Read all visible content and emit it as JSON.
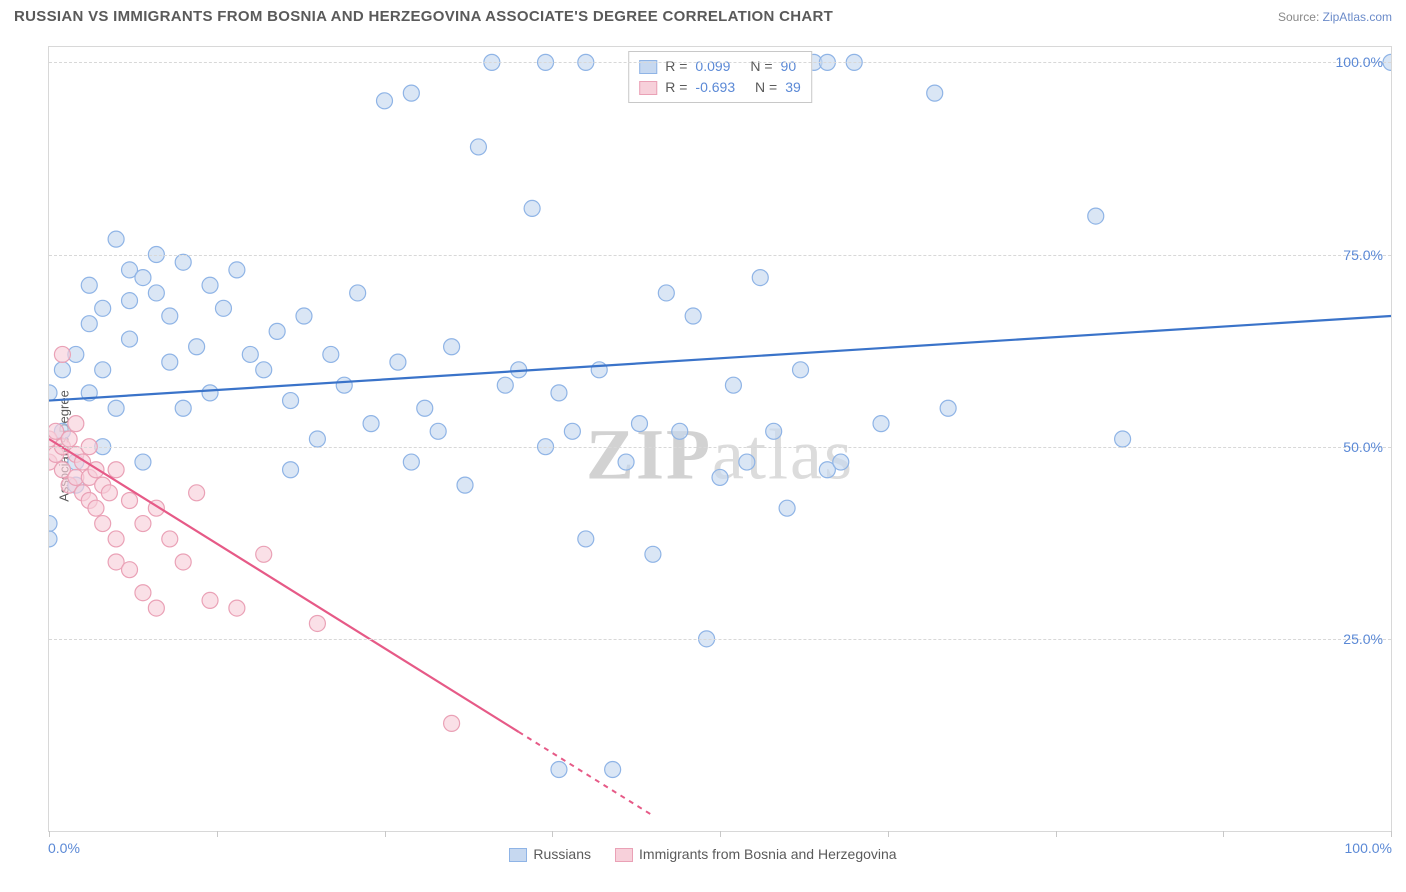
{
  "title": "RUSSIAN VS IMMIGRANTS FROM BOSNIA AND HERZEGOVINA ASSOCIATE'S DEGREE CORRELATION CHART",
  "source_prefix": "Source: ",
  "source_link": "ZipAtlas.com",
  "ylabel": "Associate's Degree",
  "watermark_a": "ZIP",
  "watermark_b": "atlas",
  "chart": {
    "type": "scatter",
    "xlim": [
      0,
      100
    ],
    "ylim": [
      0,
      102
    ],
    "ytick_values": [
      25,
      50,
      75,
      100
    ],
    "ytick_labels": [
      "25.0%",
      "50.0%",
      "75.0%",
      "100.0%"
    ],
    "xtick_values": [
      0,
      12.5,
      25,
      37.5,
      50,
      62.5,
      75,
      87.5,
      100
    ],
    "xaxis_label_left": "0.0%",
    "xaxis_label_right": "100.0%",
    "grid_color": "#d8d8d8",
    "background": "#ffffff",
    "series": [
      {
        "name": "Russians",
        "color_fill": "#c6d8f0",
        "color_stroke": "#8fb4e6",
        "line_color": "#3a73c9",
        "marker_r": 8,
        "trend": {
          "x1": 0,
          "y1": 56,
          "x2": 100,
          "y2": 67
        },
        "stats": {
          "r_label": "R =",
          "r": "0.099",
          "n_label": "N =",
          "n": "90"
        },
        "points": [
          [
            0,
            40
          ],
          [
            0,
            57
          ],
          [
            1,
            60
          ],
          [
            1,
            52
          ],
          [
            2,
            62
          ],
          [
            2,
            48
          ],
          [
            3,
            71
          ],
          [
            3,
            57
          ],
          [
            3,
            66
          ],
          [
            4,
            68
          ],
          [
            4,
            60
          ],
          [
            5,
            77
          ],
          [
            5,
            55
          ],
          [
            6,
            73
          ],
          [
            6,
            64
          ],
          [
            6,
            69
          ],
          [
            7,
            72
          ],
          [
            7,
            48
          ],
          [
            8,
            70
          ],
          [
            8,
            75
          ],
          [
            9,
            67
          ],
          [
            9,
            61
          ],
          [
            10,
            74
          ],
          [
            10,
            55
          ],
          [
            11,
            63
          ],
          [
            12,
            71
          ],
          [
            12,
            57
          ],
          [
            13,
            68
          ],
          [
            14,
            73
          ],
          [
            15,
            62
          ],
          [
            16,
            60
          ],
          [
            17,
            65
          ],
          [
            18,
            56
          ],
          [
            18,
            47
          ],
          [
            19,
            67
          ],
          [
            20,
            51
          ],
          [
            21,
            62
          ],
          [
            22,
            58
          ],
          [
            23,
            70
          ],
          [
            24,
            53
          ],
          [
            25,
            95
          ],
          [
            26,
            61
          ],
          [
            27,
            48
          ],
          [
            27,
            96
          ],
          [
            28,
            55
          ],
          [
            29,
            52
          ],
          [
            30,
            63
          ],
          [
            31,
            45
          ],
          [
            32,
            89
          ],
          [
            33,
            100
          ],
          [
            34,
            58
          ],
          [
            35,
            60
          ],
          [
            36,
            81
          ],
          [
            37,
            50
          ],
          [
            37,
            100
          ],
          [
            38,
            57
          ],
          [
            38,
            8
          ],
          [
            39,
            52
          ],
          [
            40,
            38
          ],
          [
            41,
            60
          ],
          [
            40,
            100
          ],
          [
            42,
            8
          ],
          [
            43,
            48
          ],
          [
            44,
            53
          ],
          [
            45,
            36
          ],
          [
            46,
            70
          ],
          [
            47,
            52
          ],
          [
            48,
            67
          ],
          [
            49,
            25
          ],
          [
            50,
            46
          ],
          [
            51,
            58
          ],
          [
            52,
            48
          ],
          [
            53,
            72
          ],
          [
            54,
            52
          ],
          [
            55,
            42
          ],
          [
            56,
            60
          ],
          [
            57,
            100
          ],
          [
            58,
            47
          ],
          [
            59,
            48
          ],
          [
            60,
            100
          ],
          [
            62,
            53
          ],
          [
            66,
            96
          ],
          [
            67,
            55
          ],
          [
            58,
            100
          ],
          [
            78,
            80
          ],
          [
            80,
            51
          ],
          [
            100,
            100
          ],
          [
            0,
            38
          ],
          [
            2,
            45
          ],
          [
            4,
            50
          ]
        ]
      },
      {
        "name": "Immigrants from Bosnia and Herzegovina",
        "color_fill": "#f7d0da",
        "color_stroke": "#eaa1b6",
        "line_color": "#e65a87",
        "marker_r": 8,
        "trend": {
          "x1": 0,
          "y1": 51,
          "x2": 45,
          "y2": 2
        },
        "trend_dash_after": 35,
        "stats": {
          "r_label": "R =",
          "r": "-0.693",
          "n_label": "N =",
          "n": "39"
        },
        "points": [
          [
            0,
            51
          ],
          [
            0,
            48
          ],
          [
            0.5,
            49
          ],
          [
            0.5,
            52
          ],
          [
            1,
            50
          ],
          [
            1,
            47
          ],
          [
            1,
            62
          ],
          [
            1.5,
            45
          ],
          [
            1.5,
            51
          ],
          [
            2,
            49
          ],
          [
            2,
            46
          ],
          [
            2,
            53
          ],
          [
            2.5,
            48
          ],
          [
            2.5,
            44
          ],
          [
            3,
            50
          ],
          [
            3,
            43
          ],
          [
            3,
            46
          ],
          [
            3.5,
            42
          ],
          [
            3.5,
            47
          ],
          [
            4,
            45
          ],
          [
            4,
            40
          ],
          [
            4.5,
            44
          ],
          [
            5,
            38
          ],
          [
            5,
            47
          ],
          [
            5,
            35
          ],
          [
            6,
            34
          ],
          [
            6,
            43
          ],
          [
            7,
            40
          ],
          [
            7,
            31
          ],
          [
            8,
            29
          ],
          [
            8,
            42
          ],
          [
            9,
            38
          ],
          [
            10,
            35
          ],
          [
            11,
            44
          ],
          [
            12,
            30
          ],
          [
            14,
            29
          ],
          [
            16,
            36
          ],
          [
            20,
            27
          ],
          [
            30,
            14
          ]
        ]
      }
    ]
  },
  "legend_bottom": [
    {
      "label": "Russians",
      "fill": "#c6d8f0",
      "stroke": "#8fb4e6"
    },
    {
      "label": "Immigrants from Bosnia and Herzegovina",
      "fill": "#f7d0da",
      "stroke": "#eaa1b6"
    }
  ]
}
